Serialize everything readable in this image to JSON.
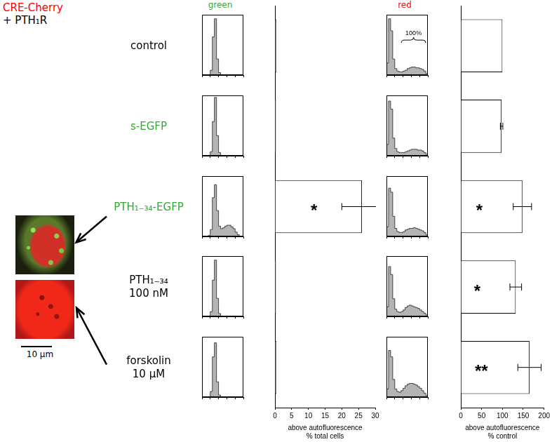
{
  "figure": {
    "title": [
      {
        "text": "CRE-Cherry",
        "color": "#ff0000"
      },
      {
        "text": "+ PTH₁R",
        "color": "#000000"
      }
    ],
    "column_headers": [
      {
        "text": "green",
        "color": "#33aa33"
      },
      {
        "text": "red",
        "color": "#ff0000"
      }
    ],
    "rows": [
      {
        "label": [
          "control"
        ],
        "color": "#000000"
      },
      {
        "label": [
          "s-EGFP"
        ],
        "color": "#33aa33"
      },
      {
        "label": [
          "PTH₁₋₃₄-EGFP"
        ],
        "color": "#33aa33"
      },
      {
        "label": [
          "PTH₁₋₃₄",
          "100 nM"
        ],
        "color": "#000000"
      },
      {
        "label": [
          "forskolin",
          "10 μM"
        ],
        "color": "#000000"
      }
    ],
    "images": [
      {
        "row": 2
      },
      {
        "row": 4
      }
    ],
    "scale_bar": "10 μm"
  },
  "chart_data": [
    {
      "type": "histogram",
      "log": "x",
      "tick_labels": false,
      "color": "#b4b4b4",
      "bins": [
        1,
        1.78,
        3.16,
        5.62,
        10,
        17.8,
        31.6,
        56.2,
        100,
        178,
        316,
        562,
        1000,
        1778,
        3162,
        5623,
        10000,
        17783,
        31623,
        56234,
        100000
      ],
      "values": [
        0,
        0,
        0,
        1,
        12,
        95,
        140,
        40,
        6,
        1,
        0,
        0,
        0,
        0,
        0,
        0,
        0,
        0,
        0,
        0
      ],
      "xlim": [
        1,
        100000
      ],
      "xticks": [
        1,
        10,
        100,
        1000,
        10000,
        100000
      ],
      "ylim": [
        0,
        150
      ]
    },
    {
      "type": "histogram",
      "log": "x",
      "tick_labels": false,
      "color": "#b4b4b4",
      "bins": [
        1,
        1.78,
        3.16,
        5.62,
        10,
        17.8,
        31.6,
        56.2,
        100,
        178,
        316,
        562,
        1000,
        1778,
        3162,
        5623,
        10000,
        17783,
        31623,
        56234,
        100000
      ],
      "values": [
        0,
        0,
        0,
        1,
        10,
        85,
        145,
        50,
        8,
        1,
        0,
        0,
        0,
        0,
        0,
        0,
        0,
        0,
        0,
        0
      ],
      "xlim": [
        1,
        100000
      ],
      "xticks": [
        1,
        10,
        100,
        1000,
        10000,
        100000
      ],
      "ylim": [
        0,
        150
      ]
    },
    {
      "type": "histogram",
      "log": "x",
      "tick_labels": false,
      "color": "#b4b4b4",
      "bins": [
        1,
        1.78,
        3.16,
        5.62,
        10,
        17.8,
        31.6,
        56.2,
        100,
        178,
        316,
        562,
        1000,
        1778,
        3162,
        5623,
        10000,
        17783,
        31623,
        56234,
        100000
      ],
      "values": [
        0,
        0,
        0,
        1,
        8,
        45,
        60,
        30,
        12,
        9,
        10,
        12,
        13,
        13,
        11,
        9,
        5,
        2,
        0,
        0
      ],
      "xlim": [
        1,
        100000
      ],
      "xticks": [
        1,
        10,
        100,
        1000,
        10000,
        100000
      ],
      "ylim": [
        0,
        70
      ]
    },
    {
      "type": "histogram",
      "log": "x",
      "tick_labels": false,
      "color": "#b4b4b4",
      "bins": [
        1,
        1.78,
        3.16,
        5.62,
        10,
        17.8,
        31.6,
        56.2,
        100,
        178,
        316,
        562,
        1000,
        1778,
        3162,
        5623,
        10000,
        17783,
        31623,
        56234,
        100000
      ],
      "values": [
        0,
        0,
        0,
        1,
        12,
        90,
        140,
        45,
        7,
        1,
        0,
        0,
        0,
        0,
        0,
        0,
        0,
        0,
        0,
        0
      ],
      "xlim": [
        1,
        100000
      ],
      "xticks": [
        1,
        10,
        100,
        1000,
        10000,
        100000
      ],
      "ylim": [
        0,
        150
      ]
    },
    {
      "type": "histogram",
      "log": "x",
      "tick_labels": false,
      "color": "#b4b4b4",
      "bins": [
        1,
        1.78,
        3.16,
        5.62,
        10,
        17.8,
        31.6,
        56.2,
        100,
        178,
        316,
        562,
        1000,
        1778,
        3162,
        5623,
        10000,
        17783,
        31623,
        56234,
        100000
      ],
      "values": [
        0,
        0,
        0,
        1,
        14,
        100,
        135,
        38,
        5,
        1,
        0,
        0,
        0,
        0,
        0,
        0,
        0,
        0,
        0,
        0
      ],
      "xlim": [
        1,
        100000
      ],
      "xticks": [
        1,
        10,
        100,
        1000,
        10000,
        100000
      ],
      "ylim": [
        0,
        150
      ]
    },
    {
      "type": "histogram",
      "log": "x",
      "tick_labels": false,
      "color": "#b4b4b4",
      "bins": [
        1,
        1.78,
        3.16,
        5.62,
        10,
        17.8,
        31.6,
        56.2,
        100,
        178,
        316,
        562,
        1000,
        1778,
        3162,
        5623,
        10000,
        17783,
        31623,
        56234,
        100000
      ],
      "values": [
        15,
        70,
        55,
        20,
        8,
        5,
        4,
        4,
        5,
        6,
        8,
        9,
        10,
        10,
        9,
        9,
        8,
        7,
        5,
        2
      ],
      "xlim": [
        1,
        100000
      ],
      "xticks": [
        1,
        10,
        100,
        1000,
        10000,
        100000
      ],
      "ylim": [
        0,
        75
      ],
      "annotations": [
        {
          "text": "100%"
        }
      ]
    },
    {
      "type": "histogram",
      "log": "x",
      "tick_labels": false,
      "color": "#b4b4b4",
      "bins": [
        1,
        1.78,
        3.16,
        5.62,
        10,
        17.8,
        31.6,
        56.2,
        100,
        178,
        316,
        562,
        1000,
        1778,
        3162,
        5623,
        10000,
        17783,
        31623,
        56234,
        100000
      ],
      "values": [
        14,
        68,
        58,
        22,
        9,
        5,
        4,
        4,
        4,
        5,
        6,
        7,
        8,
        8,
        8,
        7,
        7,
        6,
        4,
        2
      ],
      "xlim": [
        1,
        100000
      ],
      "xticks": [
        1,
        10,
        100,
        1000,
        10000,
        100000
      ],
      "ylim": [
        0,
        75
      ]
    },
    {
      "type": "histogram",
      "log": "x",
      "tick_labels": false,
      "color": "#b4b4b4",
      "bins": [
        1,
        1.78,
        3.16,
        5.62,
        10,
        17.8,
        31.6,
        56.2,
        100,
        178,
        316,
        562,
        1000,
        1778,
        3162,
        5623,
        10000,
        17783,
        31623,
        56234,
        100000
      ],
      "values": [
        12,
        60,
        55,
        25,
        10,
        6,
        5,
        5,
        6,
        8,
        9,
        10,
        10,
        11,
        10,
        9,
        8,
        7,
        5,
        2
      ],
      "xlim": [
        1,
        100000
      ],
      "xticks": [
        1,
        10,
        100,
        1000,
        10000,
        100000
      ],
      "ylim": [
        0,
        75
      ]
    },
    {
      "type": "histogram",
      "log": "x",
      "tick_labels": false,
      "color": "#b4b4b4",
      "bins": [
        1,
        1.78,
        3.16,
        5.62,
        10,
        17.8,
        31.6,
        56.2,
        100,
        178,
        316,
        562,
        1000,
        1778,
        3162,
        5623,
        10000,
        17783,
        31623,
        56234,
        100000
      ],
      "values": [
        12,
        62,
        52,
        22,
        9,
        6,
        5,
        6,
        8,
        11,
        13,
        14,
        13,
        12,
        11,
        10,
        8,
        6,
        4,
        2
      ],
      "xlim": [
        1,
        100000
      ],
      "xticks": [
        1,
        10,
        100,
        1000,
        10000,
        100000
      ],
      "ylim": [
        0,
        75
      ]
    },
    {
      "type": "histogram",
      "log": "x",
      "tick_labels": false,
      "color": "#b4b4b4",
      "bins": [
        1,
        1.78,
        3.16,
        5.62,
        10,
        17.8,
        31.6,
        56.2,
        100,
        178,
        316,
        562,
        1000,
        1778,
        3162,
        5623,
        10000,
        17783,
        31623,
        56234,
        100000
      ],
      "values": [
        10,
        58,
        50,
        22,
        10,
        7,
        6,
        8,
        11,
        14,
        16,
        17,
        17,
        16,
        15,
        13,
        11,
        8,
        5,
        2
      ],
      "xlim": [
        1,
        100000
      ],
      "xticks": [
        1,
        10,
        100,
        1000,
        10000,
        100000
      ],
      "ylim": [
        0,
        75
      ]
    },
    {
      "type": "bar",
      "orientation": "horizontal",
      "tick_labels": "x",
      "color": "#ffffff",
      "categories": [
        "control",
        "s-EGFP",
        "PTH₁₋₃₄-EGFP",
        "PTH₁₋₃₄ 100 nM",
        "forskolin 10 μM"
      ],
      "values": [
        0.4,
        0.3,
        26,
        0.3,
        0.4
      ],
      "errors": [
        0,
        0,
        6,
        0,
        0
      ],
      "xlim": [
        0,
        30
      ],
      "xticks": [
        0,
        5,
        10,
        15,
        20,
        25,
        30
      ],
      "x_label": [
        "above autofluorescence",
        "% total cells"
      ],
      "annotations": [
        {
          "category": "PTH₁₋₃₄-EGFP",
          "text": "*"
        }
      ]
    },
    {
      "type": "bar",
      "orientation": "horizontal",
      "tick_labels": "x",
      "color": "#ffffff",
      "categories": [
        "control",
        "s-EGFP",
        "PTH₁₋₃₄-EGFP",
        "PTH₁₋₃₄ 100 nM",
        "forskolin 10 μM"
      ],
      "values": [
        100,
        98,
        148,
        132,
        165
      ],
      "errors": [
        0,
        3,
        22,
        14,
        28
      ],
      "xlim": [
        0,
        200
      ],
      "xticks": [
        0,
        50,
        100,
        150,
        200
      ],
      "x_label": [
        "above autofluorescence",
        "% control"
      ],
      "annotations": [
        {
          "category": "PTH₁₋₃₄-EGFP",
          "text": "*"
        },
        {
          "category": "PTH₁₋₃₄ 100 nM",
          "text": "*"
        },
        {
          "category": "forskolin 10 μM",
          "text": "**"
        }
      ]
    }
  ]
}
